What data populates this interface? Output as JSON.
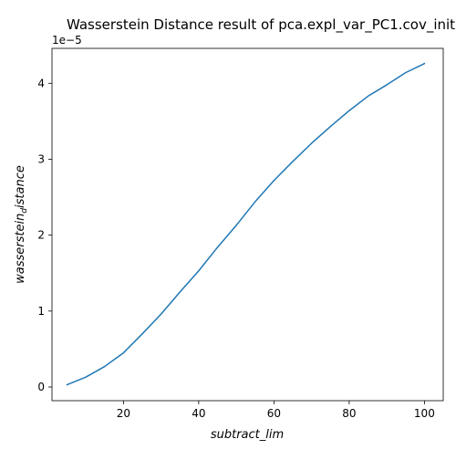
{
  "chart_data": {
    "type": "line",
    "title": "Wasserstein Distance result of pca.expl_var_PC1.cov_init",
    "xlabel": "subtract_lim",
    "ylabel": {
      "main": "wasserstein",
      "sub": "d",
      "tail": "istance"
    },
    "y_offset_label": "1e−5",
    "xlim": [
      1,
      105
    ],
    "ylim": [
      -0.18,
      4.46
    ],
    "x_ticks": [
      20,
      40,
      60,
      80,
      100
    ],
    "y_ticks": [
      0,
      1,
      2,
      3,
      4
    ],
    "grid": false,
    "series": [
      {
        "color": "#1f77b4",
        "x": [
          5,
          10,
          15,
          20,
          25,
          30,
          35,
          40,
          45,
          50,
          55,
          60,
          65,
          70,
          75,
          80,
          85,
          90,
          95,
          100
        ],
        "y": [
          0.03,
          0.13,
          0.27,
          0.45,
          0.7,
          0.96,
          1.25,
          1.53,
          1.84,
          2.13,
          2.44,
          2.72,
          2.97,
          3.21,
          3.43,
          3.64,
          3.83,
          3.98,
          4.14,
          4.26
        ]
      }
    ]
  }
}
